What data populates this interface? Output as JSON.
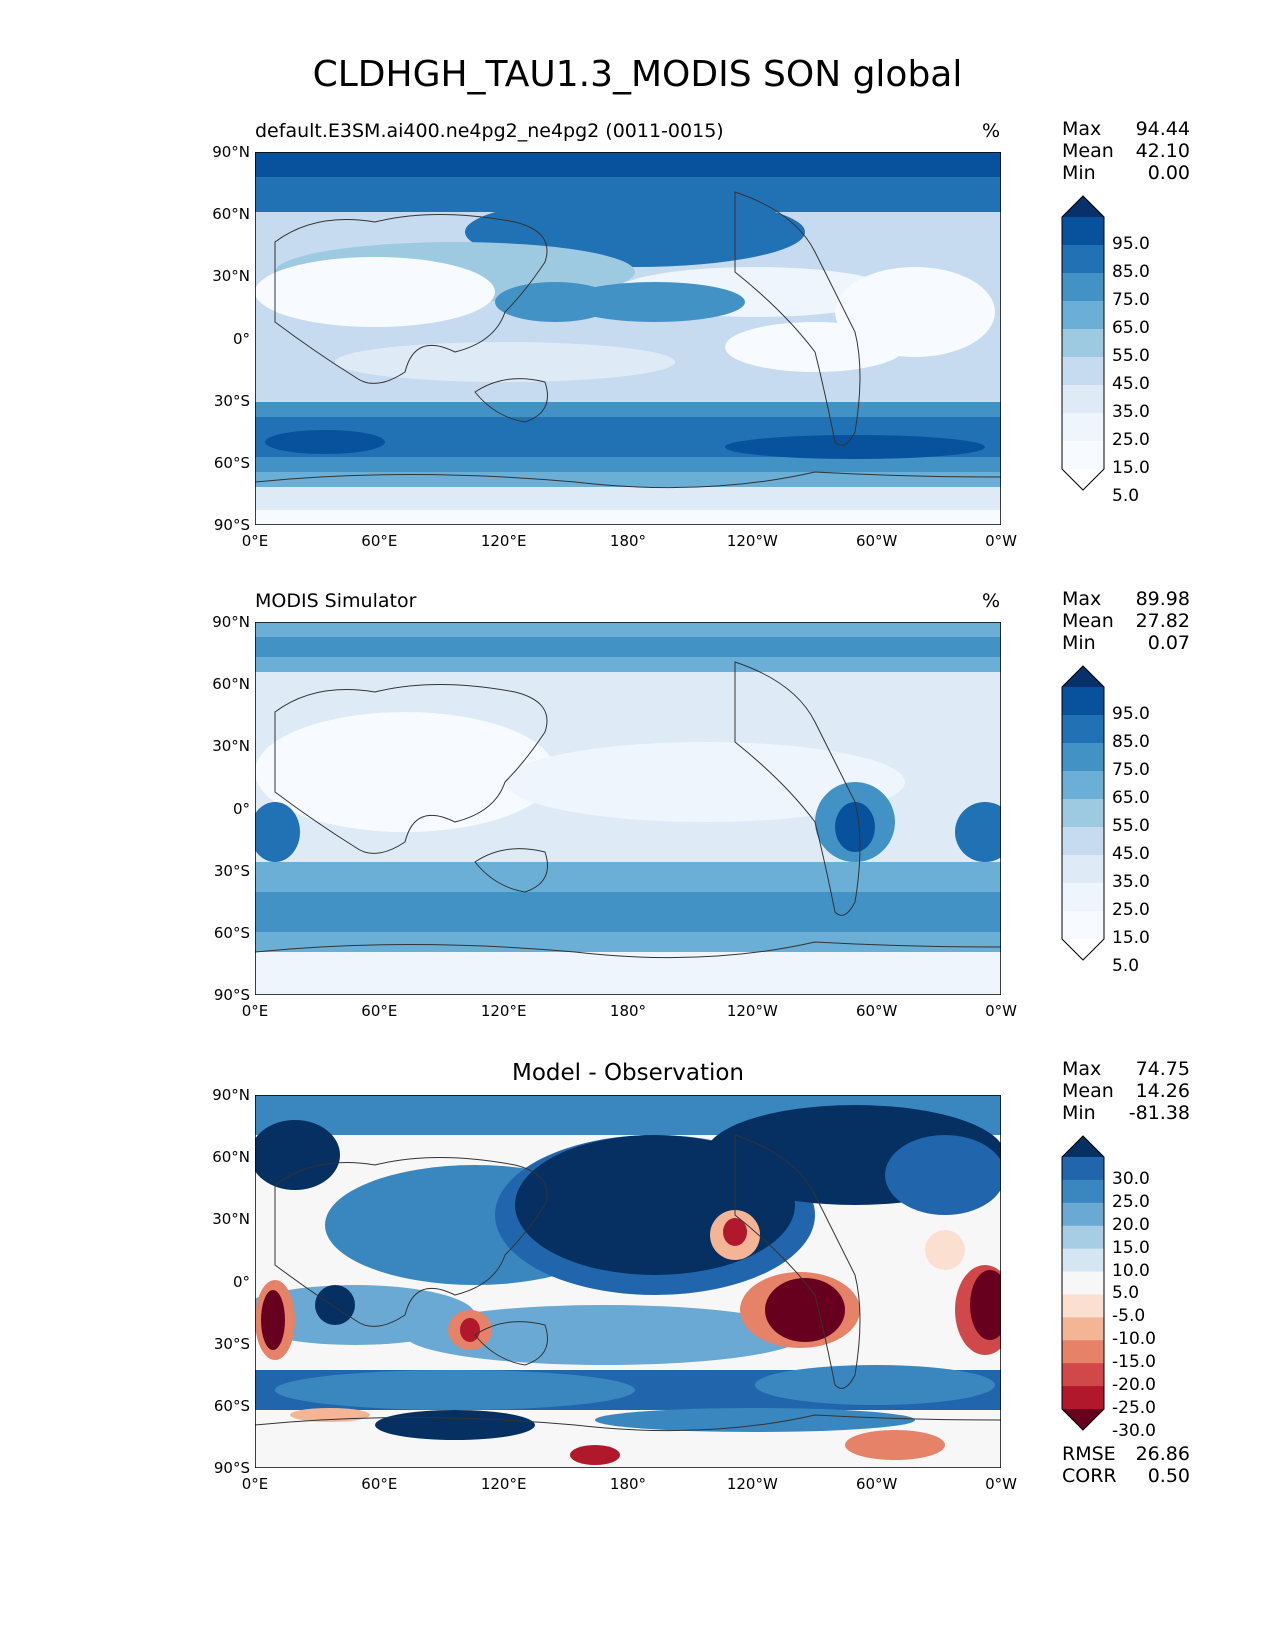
{
  "title": "CLDHGH_TAU1.3_MODIS SON global",
  "lat_labels": [
    "90°N",
    "60°N",
    "30°N",
    "0°",
    "30°S",
    "60°S",
    "90°S"
  ],
  "lon_labels": [
    "0°E",
    "60°E",
    "120°E",
    "180°",
    "120°W",
    "60°W",
    "0°W"
  ],
  "panels": [
    {
      "title_left": "default.E3SM.ai400.ne4pg2_ne4pg2 (0011-0015)",
      "title_right": "%",
      "title_center": "",
      "stats": [
        {
          "label": "Max",
          "value": "94.44"
        },
        {
          "label": "Mean",
          "value": "42.10"
        },
        {
          "label": "Min",
          "value": "0.00"
        }
      ],
      "colorbar_labels": [
        "95.0",
        "85.0",
        "75.0",
        "65.0",
        "55.0",
        "45.0",
        "35.0",
        "25.0",
        "15.0",
        "5.0"
      ],
      "colors": [
        "#08306b",
        "#08519c",
        "#2171b5",
        "#4292c6",
        "#6baed6",
        "#9ecae1",
        "#c6dbef",
        "#deebf7",
        "#eef5fc",
        "#f7fbff",
        "#ffffff"
      ],
      "extra": []
    },
    {
      "title_left": "MODIS Simulator",
      "title_right": "%",
      "title_center": "",
      "stats": [
        {
          "label": "Max",
          "value": "89.98"
        },
        {
          "label": "Mean",
          "value": "27.82"
        },
        {
          "label": "Min",
          "value": "0.07"
        }
      ],
      "colorbar_labels": [
        "95.0",
        "85.0",
        "75.0",
        "65.0",
        "55.0",
        "45.0",
        "35.0",
        "25.0",
        "15.0",
        "5.0"
      ],
      "colors": [
        "#08306b",
        "#08519c",
        "#2171b5",
        "#4292c6",
        "#6baed6",
        "#9ecae1",
        "#c6dbef",
        "#deebf7",
        "#eef5fc",
        "#f7fbff",
        "#ffffff"
      ],
      "extra": []
    },
    {
      "title_left": "",
      "title_right": "",
      "title_center": "Model - Observation",
      "stats": [
        {
          "label": "Max",
          "value": "74.75"
        },
        {
          "label": "Mean",
          "value": "14.26"
        },
        {
          "label": "Min",
          "value": "-81.38"
        }
      ],
      "colorbar_labels": [
        "30.0",
        "25.0",
        "20.0",
        "15.0",
        "10.0",
        "5.0",
        "-5.0",
        "-10.0",
        "-15.0",
        "-20.0",
        "-25.0",
        "-30.0"
      ],
      "colors": [
        "#053061",
        "#2166ac",
        "#3a87c0",
        "#6aa9d3",
        "#a6cde4",
        "#d4e6f1",
        "#f7f7f7",
        "#fbe0d2",
        "#f4b597",
        "#e58268",
        "#d1484a",
        "#b2182b",
        "#67001f"
      ],
      "extra": [
        {
          "label": "RMSE",
          "value": "26.86"
        },
        {
          "label": "CORR",
          "value": "0.50"
        }
      ]
    }
  ]
}
